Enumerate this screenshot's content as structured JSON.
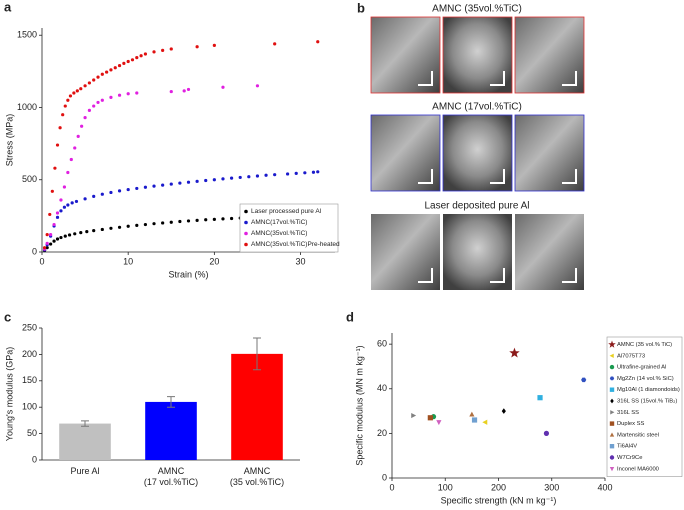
{
  "chart_data": [
    {
      "type": "scatter",
      "label": "a",
      "x_label": "Strain (%)",
      "y_label": "Stress (MPa)",
      "xlim": [
        0,
        34
      ],
      "xticks": [
        0,
        10,
        20,
        30
      ],
      "ylim": [
        0,
        1550
      ],
      "yticks": [
        0,
        500,
        1000,
        1500
      ],
      "legend": "lower right",
      "marker": "dot",
      "series": [
        {
          "name": "Laser processed pure Al",
          "color": "#000000",
          "x": [
            0.3,
            0.6,
            1,
            1.4,
            1.8,
            2.2,
            2.7,
            3.2,
            3.8,
            4.5,
            5.2,
            6,
            7,
            8,
            9,
            10,
            11,
            12,
            13,
            14,
            15,
            16,
            17,
            18,
            19,
            20,
            21,
            22,
            23
          ],
          "values": [
            10,
            30,
            55,
            75,
            90,
            100,
            110,
            118,
            126,
            134,
            141,
            148,
            156,
            164,
            171,
            178,
            184,
            190,
            196,
            201,
            206,
            211,
            215,
            219,
            223,
            226,
            229,
            232,
            235
          ]
        },
        {
          "name": "AMNC(17vol.%TiC)",
          "color": "#1a1acc",
          "x": [
            0.3,
            0.6,
            1,
            1.4,
            1.8,
            2.2,
            2.6,
            3,
            3.5,
            4,
            5,
            6,
            7,
            8,
            9,
            10,
            11,
            12,
            13,
            14,
            15,
            16,
            17,
            18,
            19,
            20,
            21,
            22,
            23,
            24,
            25,
            26,
            27,
            28.5,
            29.5,
            30.5,
            31.5,
            32
          ],
          "values": [
            15,
            50,
            110,
            180,
            240,
            285,
            310,
            325,
            340,
            350,
            368,
            385,
            400,
            412,
            423,
            432,
            440,
            448,
            456,
            463,
            470,
            477,
            483,
            489,
            495,
            500,
            506,
            511,
            516,
            521,
            526,
            531,
            535,
            540,
            544,
            548,
            552,
            555
          ]
        },
        {
          "name": "AMNC(35vol.%TiC)",
          "color": "#e020e0",
          "x": [
            0.3,
            0.6,
            1,
            1.4,
            1.8,
            2.2,
            2.6,
            3,
            3.4,
            3.8,
            4.2,
            4.6,
            5,
            5.5,
            6,
            6.5,
            7,
            8,
            9,
            10,
            11,
            15,
            16.5,
            17,
            21,
            25
          ],
          "values": [
            20,
            60,
            120,
            190,
            270,
            360,
            450,
            550,
            640,
            720,
            800,
            870,
            930,
            980,
            1010,
            1035,
            1050,
            1070,
            1085,
            1095,
            1100,
            1110,
            1115,
            1125,
            1140,
            1150
          ]
        },
        {
          "name": "AMNC(35vol.%TiC)Pre-heated",
          "color": "#e01010",
          "x": [
            0.3,
            0.6,
            0.9,
            1.2,
            1.5,
            1.8,
            2.1,
            2.4,
            2.7,
            3,
            3.3,
            3.7,
            4.1,
            4.5,
            5,
            5.5,
            6,
            6.5,
            7,
            7.5,
            8,
            8.5,
            9,
            9.5,
            10,
            10.5,
            11,
            11.5,
            12,
            13,
            14,
            15,
            18,
            20,
            27,
            32
          ],
          "values": [
            30,
            120,
            260,
            420,
            580,
            740,
            860,
            950,
            1010,
            1050,
            1080,
            1100,
            1115,
            1130,
            1150,
            1170,
            1190,
            1210,
            1230,
            1245,
            1260,
            1275,
            1290,
            1305,
            1318,
            1330,
            1345,
            1358,
            1370,
            1385,
            1395,
            1405,
            1420,
            1430,
            1440,
            1455
          ]
        }
      ]
    },
    {
      "type": "bar",
      "label": "c",
      "y_label": "Young's modulus (GPa)",
      "ylim": [
        0,
        250
      ],
      "yticks": [
        0,
        50,
        100,
        150,
        200,
        250
      ],
      "categories": [
        [
          "Pure Al"
        ],
        [
          "AMNC",
          "(17 vol.%TiC)"
        ],
        [
          "AMNC",
          "(35 vol.%TiC)"
        ]
      ],
      "values": [
        69,
        110,
        201
      ],
      "errors": [
        5,
        10,
        30
      ],
      "colors": [
        "#c0c0c0",
        "#0000ff",
        "#ff0000"
      ]
    },
    {
      "type": "scatter",
      "label": "d",
      "x_label": "Specific strength (kN m kg⁻¹)",
      "y_label": "Specific modulus (MN m kg⁻¹)",
      "xlim": [
        0,
        400
      ],
      "xticks": [
        0,
        100,
        200,
        300,
        400
      ],
      "ylim": [
        0,
        65
      ],
      "yticks": [
        0,
        20,
        40,
        60
      ],
      "legend": "right",
      "series": [
        {
          "name": "AMNC (35 vol.% TiC)",
          "color": "#8b1a1a",
          "marker": "star",
          "x": [
            230
          ],
          "values": [
            56
          ]
        },
        {
          "name": "Al7075T73",
          "color": "#e8d020",
          "marker": "triangle-left",
          "x": [
            175
          ],
          "values": [
            25
          ]
        },
        {
          "name": "Ultrafine-grained Al",
          "color": "#1a9a50",
          "marker": "circle",
          "x": [
            78
          ],
          "values": [
            27.5
          ]
        },
        {
          "name": "Mg2Zn (14 vol.% SiC)",
          "color": "#3050c0",
          "marker": "hexagon",
          "x": [
            360
          ],
          "values": [
            44
          ]
        },
        {
          "name": "Mg10Al (1 diamondoids)",
          "color": "#30b0e0",
          "marker": "square",
          "x": [
            278
          ],
          "values": [
            36
          ]
        },
        {
          "name": "316L SS (15vol.% TiB₂)",
          "color": "#000000",
          "marker": "diamond",
          "x": [
            210
          ],
          "values": [
            30
          ]
        },
        {
          "name": "316L SS",
          "color": "#808080",
          "marker": "triangle-right",
          "x": [
            40
          ],
          "values": [
            28
          ]
        },
        {
          "name": "Duplex SS",
          "color": "#a05020",
          "marker": "square",
          "x": [
            72
          ],
          "values": [
            27
          ]
        },
        {
          "name": "Martensitic steel",
          "color": "#b07040",
          "marker": "triangle-up",
          "x": [
            150
          ],
          "values": [
            28.5
          ]
        },
        {
          "name": "Ti6Al4V",
          "color": "#70a0d0",
          "marker": "square",
          "x": [
            155
          ],
          "values": [
            26
          ]
        },
        {
          "name": "W7Cr9Ce",
          "color": "#6030b0",
          "marker": "circle",
          "x": [
            290
          ],
          "values": [
            20
          ]
        },
        {
          "name": "Inconel MA6000",
          "color": "#d060c0",
          "marker": "triangle-down",
          "x": [
            88
          ],
          "values": [
            25
          ]
        }
      ]
    }
  ],
  "image_panel": {
    "label": "b",
    "groups": [
      {
        "title": "AMNC (35vol.%TiC)",
        "color": "#e03030"
      },
      {
        "title": "AMNC (17vol.%TiC)",
        "color": "#3030d0"
      },
      {
        "title": "Laser deposited pure Al",
        "color": "#000000"
      }
    ]
  }
}
